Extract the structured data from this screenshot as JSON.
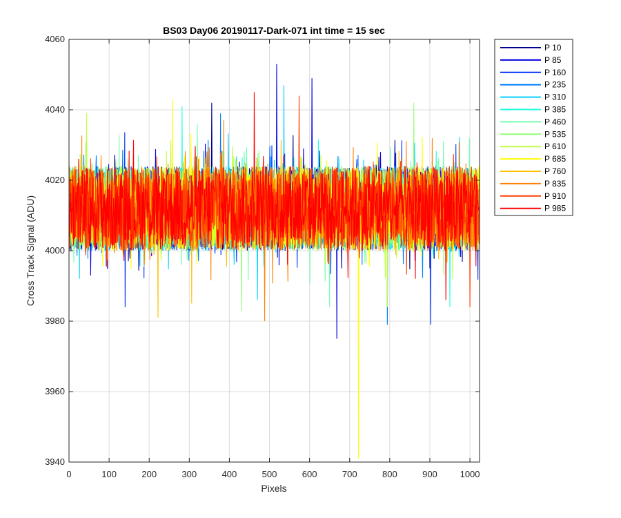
{
  "chart_data": {
    "type": "line",
    "title": "BS03 Day06 20190117-Dark-071 int time = 15 sec",
    "xlabel": "Pixels",
    "ylabel": "Cross Track Signal (ADU)",
    "xlim": [
      0,
      1024
    ],
    "ylim": [
      3940,
      4060
    ],
    "xticks": [
      "0",
      "100",
      "200",
      "300",
      "400",
      "500",
      "600",
      "700",
      "800",
      "900",
      "1000"
    ],
    "yticks": [
      "3940",
      "3960",
      "3980",
      "4000",
      "4020",
      "4040",
      "4060"
    ],
    "grid": true,
    "legend_position": "outside-right-top",
    "x_count": 1024,
    "noise": {
      "mean": 4012,
      "half_range": 12
    },
    "series": [
      {
        "name": "P 10",
        "color": "#00008F",
        "spikes": [
          [
            356,
            4042
          ],
          [
            680,
            3995
          ]
        ]
      },
      {
        "name": "P 85",
        "color": "#0000DF",
        "spikes": [
          [
            518,
            4053
          ],
          [
            668,
            3975
          ],
          [
            606,
            4049
          ]
        ]
      },
      {
        "name": "P 160",
        "color": "#0030FF",
        "spikes": [
          [
            140,
            3984
          ],
          [
            902,
            3979
          ]
        ]
      },
      {
        "name": "P 235",
        "color": "#0080FF",
        "spikes": [
          [
            794,
            3979
          ],
          [
            378,
            4039
          ]
        ]
      },
      {
        "name": "P 310",
        "color": "#00CFFF",
        "spikes": [
          [
            536,
            4047
          ],
          [
            470,
            3986
          ]
        ]
      },
      {
        "name": "P 385",
        "color": "#20FFDF",
        "spikes": [
          [
            950,
            3984
          ],
          [
            282,
            4041
          ]
        ]
      },
      {
        "name": "P 460",
        "color": "#70FFAF",
        "spikes": [
          [
            650,
            3984
          ],
          [
            320,
            4036
          ]
        ]
      },
      {
        "name": "P 535",
        "color": "#90FF70",
        "spikes": [
          [
            860,
            4042
          ],
          [
            430,
            3983
          ]
        ]
      },
      {
        "name": "P 610",
        "color": "#C0FF40",
        "spikes": [
          [
            44,
            4039
          ],
          [
            794,
            3984
          ]
        ]
      },
      {
        "name": "P 685",
        "color": "#FFFF00",
        "spikes": [
          [
            722,
            3941
          ],
          [
            258,
            4043
          ]
        ]
      },
      {
        "name": "P 760",
        "color": "#FFBF00",
        "spikes": [
          [
            222,
            3981
          ],
          [
            306,
            3985
          ]
        ]
      },
      {
        "name": "P 835",
        "color": "#FF8000",
        "spikes": [
          [
            488,
            3980
          ],
          [
            386,
            4037
          ]
        ]
      },
      {
        "name": "P 910",
        "color": "#FF4000",
        "spikes": [
          [
            574,
            4044
          ],
          [
            1000,
            3984
          ]
        ]
      },
      {
        "name": "P 985",
        "color": "#FF0000",
        "spikes": [
          [
            462,
            4045
          ],
          [
            940,
            3986
          ]
        ]
      }
    ]
  }
}
